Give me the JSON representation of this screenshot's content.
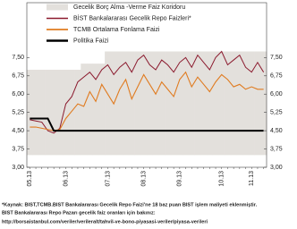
{
  "chart_data": {
    "type": "line",
    "categories": [
      "05.13",
      null,
      null,
      null,
      null,
      null,
      "06.13",
      null,
      null,
      null,
      null,
      null,
      null,
      "07.13",
      null,
      null,
      null,
      null,
      null,
      "08.13",
      null,
      null,
      null,
      null,
      null,
      "09.13",
      null,
      null,
      null,
      null,
      null,
      null,
      "10.13",
      null,
      null,
      null,
      null,
      "11.13",
      null,
      null
    ],
    "series": [
      {
        "name": "Gecelik Borç Alma -Verme Faiz Koridoru",
        "color": "#e3e0dc",
        "low": [
          3.5,
          3.5,
          3.5,
          3.5,
          3.5,
          3.5,
          3.5,
          3.5,
          3.5,
          3.5,
          3.5,
          3.5,
          3.5,
          3.5,
          3.5,
          3.5,
          3.5,
          3.5,
          3.5,
          3.5,
          3.5,
          3.5,
          3.5,
          3.5,
          3.5,
          3.5,
          3.5,
          3.5,
          3.5,
          3.5,
          3.5,
          3.5,
          3.5,
          3.5,
          3.5,
          3.5,
          3.5,
          3.5,
          3.5,
          3.5
        ],
        "high": [
          7.0,
          7.0,
          7.0,
          7.0,
          7.0,
          7.0,
          7.0,
          7.0,
          7.0,
          7.25,
          7.25,
          7.25,
          7.25,
          7.75,
          7.75,
          7.75,
          7.75,
          7.75,
          7.75,
          7.75,
          7.75,
          7.75,
          7.75,
          7.75,
          7.75,
          7.75,
          7.75,
          7.75,
          7.75,
          7.75,
          7.75,
          7.75,
          7.75,
          7.75,
          7.75,
          7.75,
          7.75,
          7.75,
          7.75,
          7.75
        ]
      },
      {
        "name": "BİST Bankalararası Gecelik Repo Faizleri*",
        "color": "#8b1a2e",
        "values": [
          4.95,
          4.9,
          4.85,
          4.5,
          4.4,
          4.6,
          5.6,
          5.9,
          6.5,
          6.7,
          6.9,
          6.6,
          7.0,
          7.2,
          6.8,
          7.1,
          7.3,
          6.9,
          7.4,
          7.6,
          7.2,
          7.0,
          7.4,
          7.2,
          6.9,
          7.3,
          7.5,
          7.1,
          7.6,
          7.3,
          7.0,
          7.5,
          7.75,
          7.2,
          7.4,
          7.6,
          7.1,
          6.9,
          7.3,
          6.9
        ]
      },
      {
        "name": "TCMB Ortalama Fonlama Faizi",
        "color": "#e07b20",
        "values": [
          4.65,
          4.65,
          4.6,
          4.55,
          4.5,
          4.55,
          5.0,
          5.3,
          5.6,
          5.5,
          6.1,
          5.7,
          6.4,
          6.0,
          5.6,
          6.2,
          6.6,
          5.8,
          6.3,
          6.8,
          6.4,
          6.0,
          6.5,
          6.2,
          5.9,
          6.6,
          6.9,
          6.3,
          6.7,
          6.4,
          6.1,
          6.5,
          6.8,
          6.6,
          6.3,
          6.4,
          6.2,
          6.3,
          6.2,
          6.2
        ]
      },
      {
        "name": "Politika Faizi",
        "color": "#000000",
        "values": [
          5.0,
          5.0,
          5.0,
          5.0,
          4.5,
          4.5,
          4.5,
          4.5,
          4.5,
          4.5,
          4.5,
          4.5,
          4.5,
          4.5,
          4.5,
          4.5,
          4.5,
          4.5,
          4.5,
          4.5,
          4.5,
          4.5,
          4.5,
          4.5,
          4.5,
          4.5,
          4.5,
          4.5,
          4.5,
          4.5,
          4.5,
          4.5,
          4.5,
          4.5,
          4.5,
          4.5,
          4.5,
          4.5,
          4.5,
          4.5
        ]
      }
    ],
    "ylim": [
      3,
      9.75
    ],
    "yticks": [
      {
        "value": 3,
        "label": "3,00"
      },
      {
        "value": 3.75,
        "label": "3,75"
      },
      {
        "value": 4.5,
        "label": "4,50"
      },
      {
        "value": 5.25,
        "label": "5,25"
      },
      {
        "value": 6,
        "label": "6,00"
      },
      {
        "value": 6.75,
        "label": "6,75"
      },
      {
        "value": 7.5,
        "label": "7,50"
      }
    ],
    "y2lim": [
      3,
      9.75
    ],
    "y2ticks": [
      {
        "value": 3,
        "label": "3,00"
      },
      {
        "value": 3.75,
        "label": "3,75"
      },
      {
        "value": 4.5,
        "label": "4,50"
      },
      {
        "value": 5.25,
        "label": "5,25"
      },
      {
        "value": 6,
        "label": "6,00"
      },
      {
        "value": 6.75,
        "label": "6,75"
      },
      {
        "value": 7.5,
        "label": "7,50"
      }
    ],
    "notes": [
      "*Kaynak: BIST,TCMB.BIST Bankalararası Gecelik Repo Faizi'ne 18 baz puan BIST işlem maliyeti eklenmiştir.",
      "BIST Bankalararası Repo Pazarı gecelik faiz oranları için bakınız:",
      "http://borsaistanbul.com/veriler/verileralt/tahvil-ve-bono-piyasasi-veriler/piyasa-verileri"
    ]
  }
}
